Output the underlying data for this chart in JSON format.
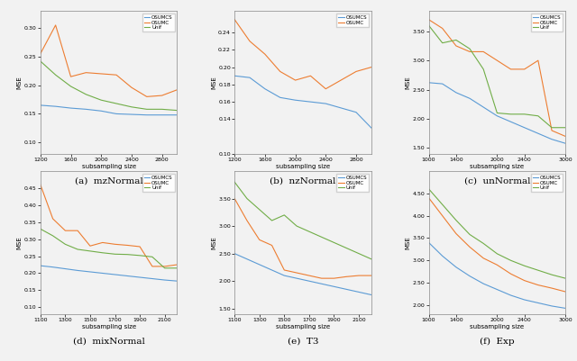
{
  "subplots": [
    {
      "caption": "(a)  mzNormal",
      "xlabel": "subsampling size",
      "ylabel": "MSE",
      "x": [
        1200,
        1400,
        1600,
        1800,
        2000,
        2200,
        2400,
        2600,
        2800,
        3000
      ],
      "OSUMCS": [
        0.165,
        0.163,
        0.16,
        0.158,
        0.155,
        0.15,
        0.149,
        0.148,
        0.148,
        0.148
      ],
      "OSUMC": [
        0.255,
        0.305,
        0.215,
        0.222,
        0.22,
        0.218,
        0.196,
        0.18,
        0.182,
        0.192
      ],
      "Unif": [
        0.242,
        0.218,
        0.198,
        0.184,
        0.174,
        0.168,
        0.162,
        0.158,
        0.158,
        0.156
      ],
      "ylim": [
        0.08,
        0.33
      ],
      "yticks": [
        0.1,
        0.15,
        0.2,
        0.25,
        0.3
      ],
      "xticks": [
        1200,
        1600,
        2000,
        2400,
        2800
      ]
    },
    {
      "caption": "(b)  nzNormal",
      "xlabel": "subsampling size",
      "ylabel": "MSE",
      "x": [
        1200,
        1400,
        1600,
        1800,
        2000,
        2200,
        2400,
        2600,
        2800,
        3000
      ],
      "OSUMCS": [
        0.19,
        0.188,
        0.175,
        0.165,
        0.162,
        0.16,
        0.158,
        0.153,
        0.148,
        0.13
      ],
      "OSUMC": [
        0.255,
        0.23,
        0.215,
        0.195,
        0.185,
        0.19,
        0.175,
        0.185,
        0.195,
        0.2
      ],
      "Unif": [
        null,
        null,
        null,
        null,
        null,
        null,
        null,
        null,
        null,
        null
      ],
      "ylim": [
        0.1,
        0.265
      ],
      "yticks": [
        0.1,
        0.14,
        0.16,
        0.18,
        0.2,
        0.22,
        0.24
      ],
      "xticks": [
        1200,
        1600,
        2000,
        2400,
        2800
      ],
      "has_unif": false
    },
    {
      "caption": "(c)  unNormal",
      "xlabel": "subsampling size",
      "ylabel": "MSE",
      "x": [
        1000,
        1200,
        1400,
        1600,
        1800,
        2000,
        2200,
        2400,
        2600,
        2800,
        3000
      ],
      "OSUMCS": [
        2.62,
        2.6,
        2.45,
        2.35,
        2.2,
        2.05,
        1.95,
        1.85,
        1.75,
        1.65,
        1.58
      ],
      "OSUMC": [
        3.7,
        3.55,
        3.25,
        3.15,
        3.15,
        3.0,
        2.85,
        2.85,
        3.0,
        1.8,
        1.7
      ],
      "Unif": [
        3.6,
        3.3,
        3.35,
        3.2,
        2.85,
        2.1,
        2.08,
        2.08,
        2.05,
        1.85,
        1.85
      ],
      "ylim": [
        1.4,
        3.85
      ],
      "yticks": [
        1.5,
        2.0,
        2.5,
        3.0,
        3.5
      ],
      "xticks": [
        1000,
        1400,
        2000,
        2400,
        3000
      ],
      "has_unif": true
    },
    {
      "caption": "(d)  mixNormal",
      "xlabel": "subsampling size",
      "ylabel": "MSE",
      "x": [
        1100,
        1200,
        1300,
        1400,
        1500,
        1600,
        1700,
        1800,
        1900,
        2000,
        2100,
        2200
      ],
      "OSUMCS": [
        0.222,
        0.218,
        0.213,
        0.208,
        0.204,
        0.2,
        0.196,
        0.192,
        0.188,
        0.184,
        0.18,
        0.177
      ],
      "OSUMC": [
        0.46,
        0.36,
        0.325,
        0.325,
        0.28,
        0.29,
        0.285,
        0.282,
        0.278,
        0.22,
        0.22,
        0.225
      ],
      "Unif": [
        0.33,
        0.31,
        0.285,
        0.27,
        0.265,
        0.26,
        0.256,
        0.255,
        0.252,
        0.248,
        0.215,
        0.215
      ],
      "ylim": [
        0.08,
        0.5
      ],
      "yticks": [
        0.1,
        0.15,
        0.2,
        0.25,
        0.3,
        0.35,
        0.4,
        0.45
      ],
      "xticks": [
        1100,
        1300,
        1500,
        1700,
        1900,
        2100
      ],
      "has_unif": true
    },
    {
      "caption": "(e)  T3",
      "xlabel": "subsampling size",
      "ylabel": "MSE",
      "x": [
        1100,
        1200,
        1300,
        1400,
        1500,
        1600,
        1700,
        1800,
        1900,
        2000,
        2100,
        2200
      ],
      "OSUMCS": [
        2.5,
        2.4,
        2.3,
        2.2,
        2.1,
        2.05,
        2.0,
        1.95,
        1.9,
        1.85,
        1.8,
        1.75
      ],
      "OSUMC": [
        3.5,
        3.1,
        2.75,
        2.65,
        2.2,
        2.15,
        2.1,
        2.05,
        2.05,
        2.08,
        2.1,
        2.1
      ],
      "Unif": [
        3.8,
        3.5,
        3.3,
        3.1,
        3.2,
        3.0,
        2.9,
        2.8,
        2.7,
        2.6,
        2.5,
        2.4
      ],
      "ylim": [
        1.4,
        4.0
      ],
      "yticks": [
        1.5,
        2.0,
        2.5,
        3.0,
        3.5
      ],
      "xticks": [
        1100,
        1300,
        1500,
        1700,
        1900,
        2100
      ],
      "has_unif": true
    },
    {
      "caption": "(f)  Exp",
      "xlabel": "subsampling size",
      "ylabel": "MSE",
      "x": [
        1000,
        1200,
        1400,
        1600,
        1800,
        2000,
        2200,
        2400,
        2600,
        2800,
        3000
      ],
      "OSUMCS": [
        3.4,
        3.1,
        2.85,
        2.65,
        2.48,
        2.35,
        2.22,
        2.12,
        2.05,
        1.98,
        1.93
      ],
      "OSUMC": [
        4.4,
        4.0,
        3.6,
        3.3,
        3.05,
        2.9,
        2.7,
        2.55,
        2.45,
        2.38,
        2.3
      ],
      "Unif": [
        4.6,
        4.25,
        3.9,
        3.58,
        3.38,
        3.15,
        3.0,
        2.88,
        2.78,
        2.68,
        2.6
      ],
      "ylim": [
        1.8,
        5.0
      ],
      "yticks": [
        2.0,
        2.5,
        3.0,
        3.5,
        4.0,
        4.5
      ],
      "xticks": [
        1000,
        1400,
        2000,
        2400,
        3000
      ],
      "has_unif": true
    }
  ],
  "colors": {
    "OSUMCS": "#5b9bd5",
    "OSUMC": "#ed7d31",
    "Unif": "#70ad47"
  },
  "figure_bgcolor": "#f2f2f2",
  "axes_bgcolor": "#f2f2f2"
}
